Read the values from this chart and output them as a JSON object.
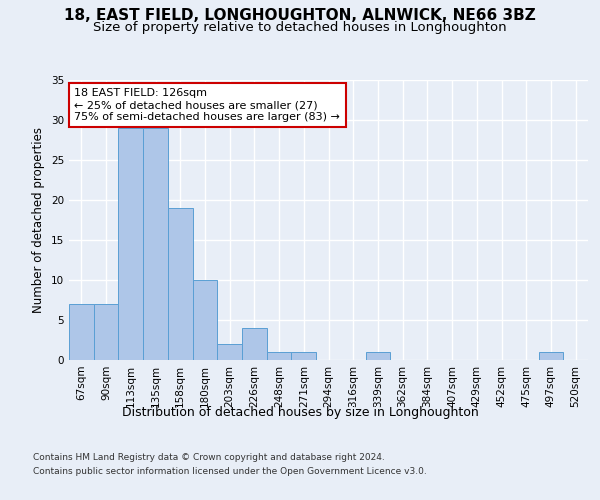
{
  "title1": "18, EAST FIELD, LONGHOUGHTON, ALNWICK, NE66 3BZ",
  "title2": "Size of property relative to detached houses in Longhoughton",
  "xlabel": "Distribution of detached houses by size in Longhoughton",
  "ylabel": "Number of detached properties",
  "categories": [
    "67sqm",
    "90sqm",
    "113sqm",
    "135sqm",
    "158sqm",
    "180sqm",
    "203sqm",
    "226sqm",
    "248sqm",
    "271sqm",
    "294sqm",
    "316sqm",
    "339sqm",
    "362sqm",
    "384sqm",
    "407sqm",
    "429sqm",
    "452sqm",
    "475sqm",
    "497sqm",
    "520sqm"
  ],
  "values": [
    7,
    7,
    29,
    29,
    19,
    10,
    2,
    4,
    1,
    1,
    0,
    0,
    1,
    0,
    0,
    0,
    0,
    0,
    0,
    1,
    0
  ],
  "bar_color": "#aec6e8",
  "bar_edge_color": "#5a9fd4",
  "annotation_text": "18 EAST FIELD: 126sqm\n← 25% of detached houses are smaller (27)\n75% of semi-detached houses are larger (83) →",
  "annotation_box_color": "#ffffff",
  "annotation_box_edge_color": "#cc0000",
  "footer1": "Contains HM Land Registry data © Crown copyright and database right 2024.",
  "footer2": "Contains public sector information licensed under the Open Government Licence v3.0.",
  "ylim": [
    0,
    35
  ],
  "yticks": [
    0,
    5,
    10,
    15,
    20,
    25,
    30,
    35
  ],
  "background_color": "#e8eef7",
  "grid_color": "#ffffff",
  "title1_fontsize": 11,
  "title2_fontsize": 9.5,
  "tick_fontsize": 7.5,
  "xlabel_fontsize": 9,
  "ylabel_fontsize": 8.5,
  "footer_fontsize": 6.5
}
